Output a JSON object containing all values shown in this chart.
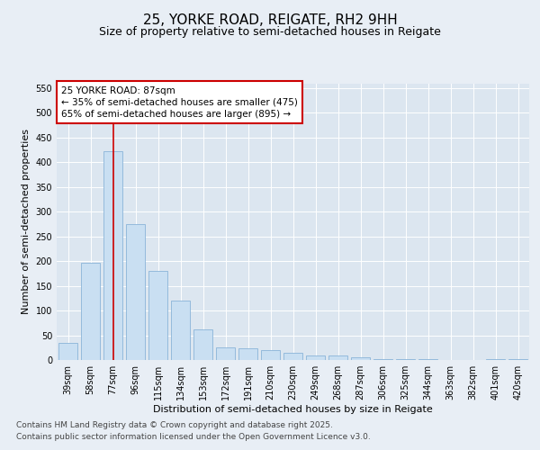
{
  "title": "25, YORKE ROAD, REIGATE, RH2 9HH",
  "subtitle": "Size of property relative to semi-detached houses in Reigate",
  "xlabel": "Distribution of semi-detached houses by size in Reigate",
  "ylabel": "Number of semi-detached properties",
  "categories": [
    "39sqm",
    "58sqm",
    "77sqm",
    "96sqm",
    "115sqm",
    "134sqm",
    "153sqm",
    "172sqm",
    "191sqm",
    "210sqm",
    "230sqm",
    "249sqm",
    "268sqm",
    "287sqm",
    "306sqm",
    "325sqm",
    "344sqm",
    "363sqm",
    "382sqm",
    "401sqm",
    "420sqm"
  ],
  "values": [
    35,
    197,
    422,
    275,
    181,
    121,
    62,
    25,
    23,
    20,
    14,
    10,
    9,
    5,
    2,
    2,
    1,
    0,
    0,
    1,
    1
  ],
  "bar_color": "#c9dff2",
  "bar_edge_color": "#8ab4d8",
  "vline_x": 2.0,
  "vline_color": "#cc0000",
  "annotation_title": "25 YORKE ROAD: 87sqm",
  "annotation_line1": "← 35% of semi-detached houses are smaller (475)",
  "annotation_line2": "65% of semi-detached houses are larger (895) →",
  "annotation_box_color": "#cc0000",
  "ylim": [
    0,
    560
  ],
  "yticks": [
    0,
    50,
    100,
    150,
    200,
    250,
    300,
    350,
    400,
    450,
    500,
    550
  ],
  "bg_color": "#e8eef5",
  "plot_bg_color": "#dce6f0",
  "footer_line1": "Contains HM Land Registry data © Crown copyright and database right 2025.",
  "footer_line2": "Contains public sector information licensed under the Open Government Licence v3.0.",
  "title_fontsize": 11,
  "subtitle_fontsize": 9,
  "ylabel_fontsize": 8,
  "xlabel_fontsize": 8,
  "tick_fontsize": 7,
  "annotation_fontsize": 7.5,
  "footer_fontsize": 6.5
}
